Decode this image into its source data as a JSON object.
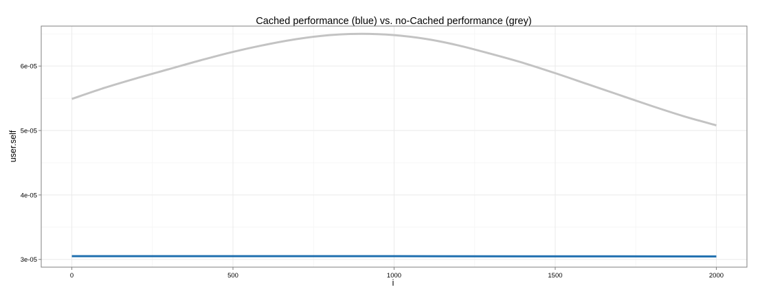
{
  "chart_data": {
    "type": "line",
    "title": "Cached performance (blue) vs. no-Cached performance (grey)",
    "xlabel": "i",
    "ylabel": "user.self",
    "xlim": [
      -95,
      2095
    ],
    "ylim": [
      2.88e-05,
      6.62e-05
    ],
    "x_ticks": [
      0,
      500,
      1000,
      1500,
      2000
    ],
    "x_tick_labels": [
      "0",
      "500",
      "1000",
      "1500",
      "2000"
    ],
    "y_ticks": [
      3e-05,
      4e-05,
      5e-05,
      6e-05
    ],
    "y_tick_labels": [
      "3e-05",
      "4e-05",
      "5e-05",
      "6e-05"
    ],
    "grid": true,
    "legend": "none",
    "series": [
      {
        "color": "#C3C3C3",
        "x": [
          0,
          100,
          200,
          300,
          400,
          500,
          600,
          700,
          800,
          900,
          1000,
          1100,
          1200,
          1300,
          1400,
          1500,
          1600,
          1700,
          1800,
          1900,
          2000
        ],
        "y": [
          5.49e-05,
          5.66e-05,
          5.81e-05,
          5.95e-05,
          6.09e-05,
          6.22e-05,
          6.33e-05,
          6.42e-05,
          6.48e-05,
          6.5e-05,
          6.48e-05,
          6.42e-05,
          6.32e-05,
          6.19e-05,
          6.05e-05,
          5.89e-05,
          5.72e-05,
          5.55e-05,
          5.38e-05,
          5.22e-05,
          5.08e-05
        ]
      },
      {
        "color": "#1F6FAF",
        "x": [
          0,
          500,
          1000,
          1500,
          2000
        ],
        "y": [
          3.05e-05,
          3.05e-05,
          3.05e-05,
          3.048e-05,
          3.047e-05
        ]
      }
    ]
  }
}
